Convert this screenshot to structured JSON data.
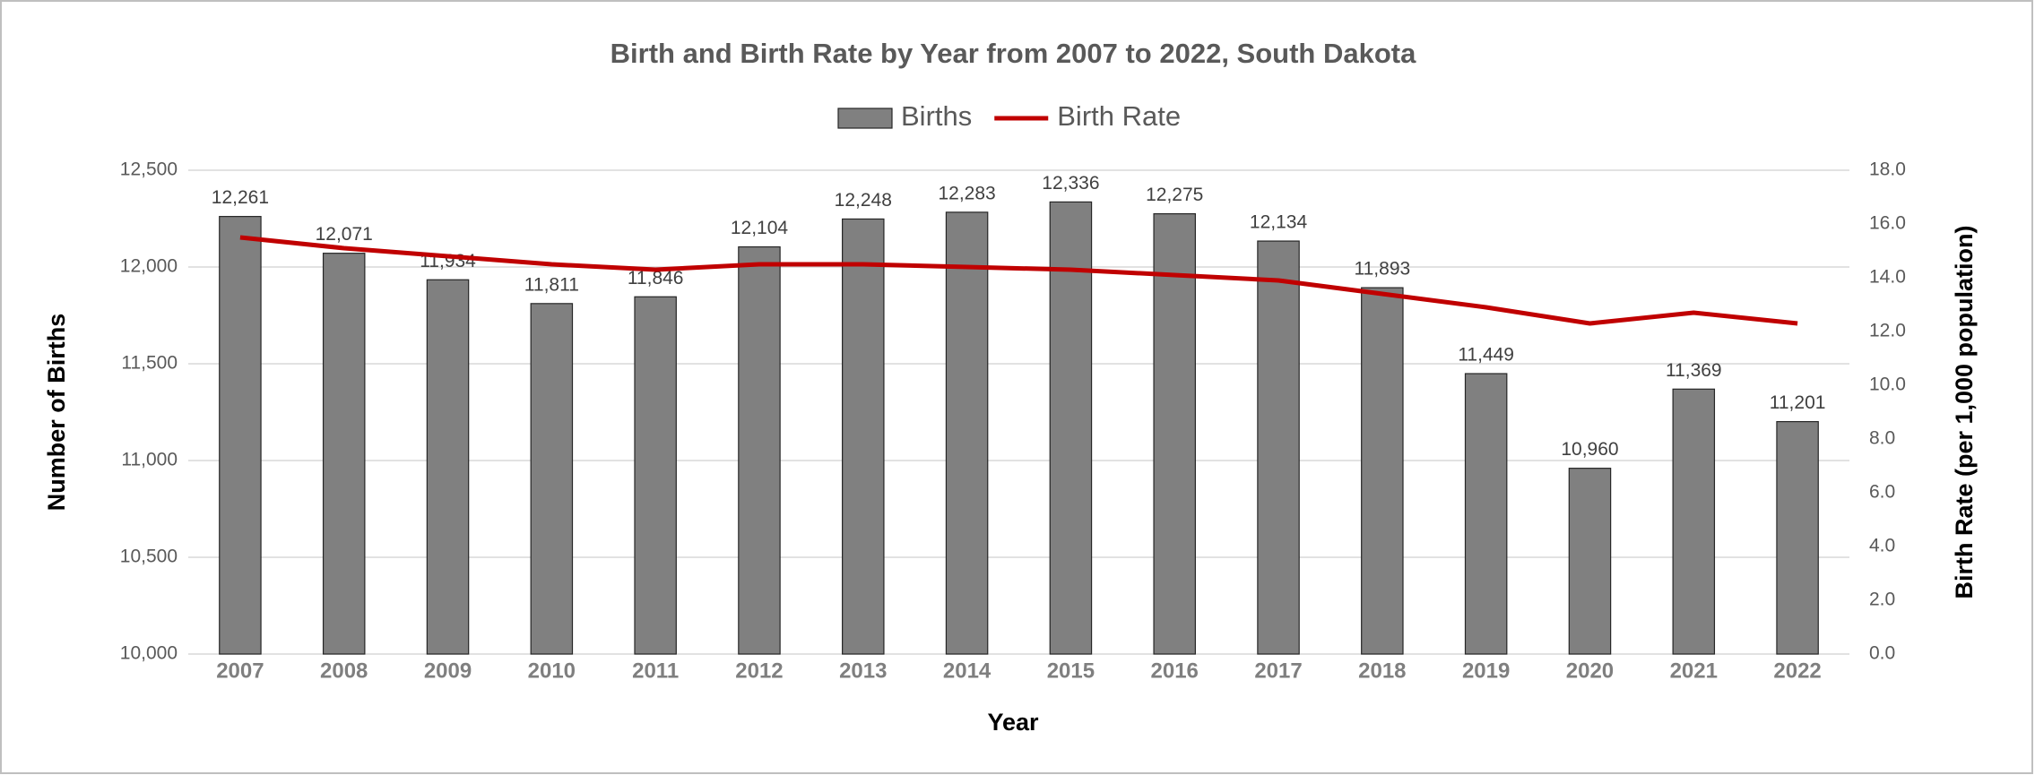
{
  "chart_data": {
    "type": "bar-line",
    "title": "Birth and Birth Rate by Year from 2007 to 2022, South Dakota",
    "xlabel": "Year",
    "ylabel": "Number of Births",
    "y2label": "Birth Rate (per 1,000 population)",
    "categories": [
      "2007",
      "2008",
      "2009",
      "2010",
      "2011",
      "2012",
      "2013",
      "2014",
      "2015",
      "2016",
      "2017",
      "2018",
      "2019",
      "2020",
      "2021",
      "2022"
    ],
    "series": [
      {
        "name": "Births",
        "type": "bar",
        "color": "#808080",
        "values": [
          12261,
          12071,
          11934,
          11811,
          11846,
          12104,
          12248,
          12283,
          12336,
          12275,
          12134,
          11893,
          11449,
          10960,
          11369,
          11201
        ],
        "value_labels": [
          "12,261",
          "12,071",
          "11,934",
          "11,811",
          "11,846",
          "12,104",
          "12,248",
          "12,283",
          "12,336",
          "12,275",
          "12,134",
          "11,893",
          "11,449",
          "10,960",
          "11,369",
          "11,201"
        ]
      },
      {
        "name": "Birth Rate",
        "type": "line",
        "axis": "y2",
        "color": "#c00000",
        "values": [
          15.5,
          15.1,
          14.8,
          14.5,
          14.3,
          14.5,
          14.5,
          14.4,
          14.3,
          14.1,
          13.9,
          13.4,
          12.9,
          12.3,
          12.7,
          12.3
        ]
      }
    ],
    "ylim": [
      10000,
      12500
    ],
    "yticks": [
      {
        "value": 10000,
        "label": "10,000"
      },
      {
        "value": 10500,
        "label": "10,500"
      },
      {
        "value": 11000,
        "label": "11,000"
      },
      {
        "value": 11500,
        "label": "11,500"
      },
      {
        "value": 12000,
        "label": "12,000"
      },
      {
        "value": 12500,
        "label": "12,500"
      }
    ],
    "y2lim": [
      0,
      18
    ],
    "y2ticks": [
      {
        "value": 0,
        "label": "0.0"
      },
      {
        "value": 2,
        "label": "2.0"
      },
      {
        "value": 4,
        "label": "4.0"
      },
      {
        "value": 6,
        "label": "6.0"
      },
      {
        "value": 8,
        "label": "8.0"
      },
      {
        "value": 10,
        "label": "10.0"
      },
      {
        "value": 12,
        "label": "12.0"
      },
      {
        "value": 14,
        "label": "14.0"
      },
      {
        "value": 16,
        "label": "16.0"
      },
      {
        "value": 18,
        "label": "18.0"
      }
    ],
    "grid": true,
    "legend": "top"
  }
}
